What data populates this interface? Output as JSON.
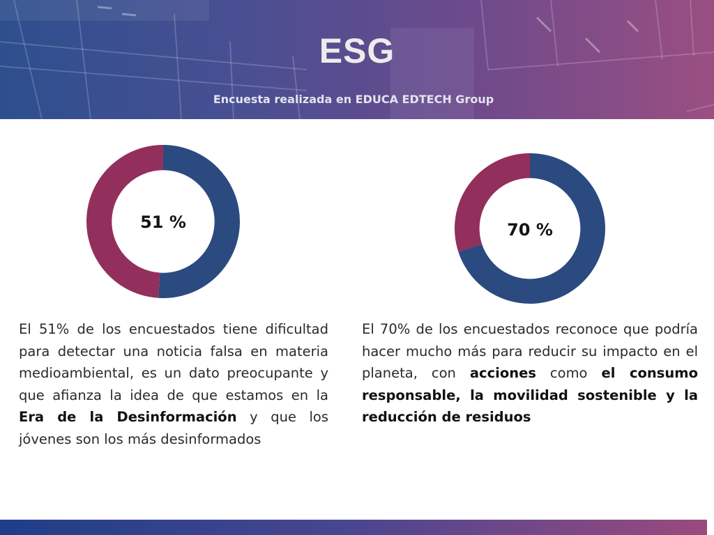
{
  "header": {
    "title": "ESG",
    "subtitle": "Encuesta realizada en EDUCA EDTECH Group"
  },
  "colors": {
    "primary": "#2a4a80",
    "secondary": "#932f5c",
    "banner_start": "#2d4f8e",
    "banner_end": "#9a4f82"
  },
  "chart_data": [
    {
      "type": "pie",
      "title": "",
      "center_label": "51 %",
      "slices": [
        {
          "value": 51,
          "color": "#2a4a80"
        },
        {
          "value": 49,
          "color": "#932f5c"
        }
      ]
    },
    {
      "type": "pie",
      "title": "",
      "center_label": "70 %",
      "slices": [
        {
          "value": 70,
          "color": "#2a4a80"
        },
        {
          "value": 30,
          "color": "#932f5c"
        }
      ]
    }
  ],
  "left_text": {
    "part1": "El 51% de los encuestados tiene dificultad para detectar una noticia falsa en materia medioambiental, es un dato preocupante y que afianza la idea de que estamos en la ",
    "bold1": "Era de la Desinformación",
    "part2": " y que los jóvenes son los más desinformados"
  },
  "right_text": {
    "part1": "El 70% de los encuestados reconoce que podría hacer mucho más para reducir su impacto en el planeta, con ",
    "bold1": "acciones",
    "part2": " como ",
    "bold2": "el consumo responsable, la movilidad sostenible y la reducción de residuos"
  }
}
